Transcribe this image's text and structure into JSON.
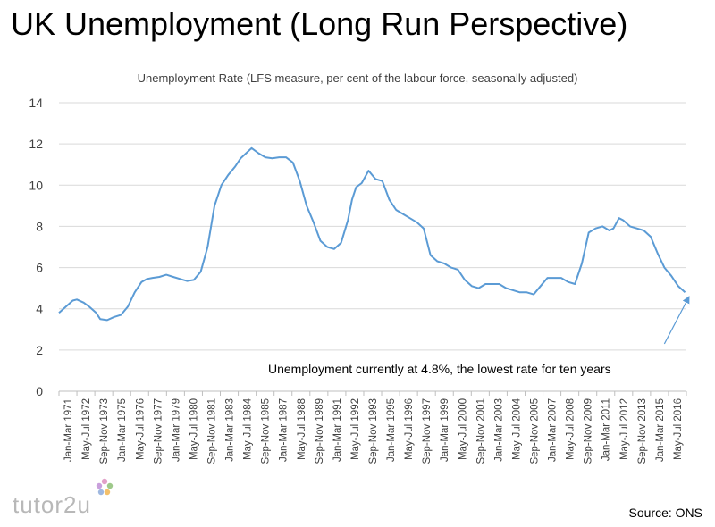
{
  "chart_data": {
    "type": "line",
    "title": "UK Unemployment (Long Run Perspective)",
    "subtitle": "Unemployment Rate (LFS measure, per cent of the labour force, seasonally adjusted)",
    "ylim": [
      0,
      14
    ],
    "yticks": [
      0,
      2,
      4,
      6,
      8,
      10,
      12,
      14
    ],
    "grid": true,
    "x_categories": [
      "Jan-Mar 1971",
      "May-Jul 1972",
      "Sep-Nov 1973",
      "Jan-Mar 1975",
      "May-Jul 1976",
      "Sep-Nov 1977",
      "Jan-Mar 1979",
      "May-Jul 1980",
      "Sep-Nov 1981",
      "Jan-Mar 1983",
      "May-Jul 1984",
      "Sep-Nov 1985",
      "Jan-Mar 1987",
      "May-Jul 1988",
      "Sep-Nov 1989",
      "Jan-Mar 1991",
      "May-Jul 1992",
      "Sep-Nov 1993",
      "Jan-Mar 1995",
      "May-Jul 1996",
      "Sep-Nov 1997",
      "Jan-Mar 1999",
      "May-Jul 2000",
      "Sep-Nov 2001",
      "Jan-Mar 2003",
      "May-Jul 2004",
      "Sep-Nov 2005",
      "Jan-Mar 2007",
      "May-Jul 2008",
      "Sep-Nov 2009",
      "Jan-Mar 2011",
      "May-Jul 2012",
      "Sep-Nov 2013",
      "Jan-Mar 2015",
      "May-Jul 2016"
    ],
    "series": [
      {
        "color": "#5b9bd5",
        "x": [
          1971.0,
          1971.5,
          1972.0,
          1972.3,
          1972.8,
          1973.2,
          1973.7,
          1974.0,
          1974.5,
          1975.0,
          1975.5,
          1976.0,
          1976.5,
          1977.0,
          1977.4,
          1977.8,
          1978.3,
          1978.8,
          1979.3,
          1979.8,
          1980.3,
          1980.8,
          1981.3,
          1981.8,
          1982.3,
          1982.8,
          1983.3,
          1983.8,
          1984.2,
          1984.6,
          1985.0,
          1985.5,
          1986.0,
          1986.5,
          1987.0,
          1987.5,
          1988.0,
          1988.5,
          1989.0,
          1989.5,
          1990.0,
          1990.5,
          1991.0,
          1991.5,
          1992.0,
          1992.3,
          1992.6,
          1993.0,
          1993.5,
          1994.0,
          1994.5,
          1995.0,
          1995.5,
          1996.0,
          1996.5,
          1997.0,
          1997.5,
          1998.0,
          1998.5,
          1999.0,
          1999.5,
          2000.0,
          2000.5,
          2001.0,
          2001.5,
          2002.0,
          2002.5,
          2003.0,
          2003.5,
          2004.0,
          2004.5,
          2005.0,
          2005.5,
          2006.0,
          2006.5,
          2007.0,
          2007.5,
          2008.0,
          2008.5,
          2009.0,
          2009.5,
          2010.0,
          2010.5,
          2011.0,
          2011.3,
          2011.7,
          2012.0,
          2012.5,
          2013.0,
          2013.5,
          2014.0,
          2014.5,
          2015.0,
          2015.5,
          2016.0,
          2016.5
        ],
        "values": [
          3.8,
          4.1,
          4.4,
          4.45,
          4.3,
          4.1,
          3.8,
          3.5,
          3.45,
          3.6,
          3.7,
          4.1,
          4.8,
          5.3,
          5.45,
          5.5,
          5.55,
          5.65,
          5.55,
          5.45,
          5.35,
          5.4,
          5.8,
          7.0,
          9.0,
          10.0,
          10.5,
          10.9,
          11.3,
          11.55,
          11.8,
          11.55,
          11.35,
          11.3,
          11.35,
          11.35,
          11.1,
          10.2,
          9.0,
          8.2,
          7.3,
          7.0,
          6.9,
          7.2,
          8.3,
          9.3,
          9.9,
          10.1,
          10.7,
          10.3,
          10.2,
          9.3,
          8.8,
          8.6,
          8.4,
          8.2,
          7.9,
          6.6,
          6.3,
          6.2,
          6.0,
          5.9,
          5.4,
          5.1,
          5.0,
          5.2,
          5.2,
          5.2,
          5.0,
          4.9,
          4.8,
          4.8,
          4.7,
          5.1,
          5.5,
          5.5,
          5.5,
          5.3,
          5.2,
          6.2,
          7.7,
          7.9,
          8.0,
          7.8,
          7.9,
          8.4,
          8.3,
          8.0,
          7.9,
          7.8,
          7.5,
          6.7,
          6.0,
          5.6,
          5.1,
          4.8
        ]
      }
    ],
    "annotation": {
      "text": "Unemployment currently at 4.8%, the lowest rate for ten years",
      "arrow_from": [
        2015.0,
        2.3
      ],
      "arrow_to": [
        2016.8,
        4.6
      ]
    }
  },
  "brand": "tutor2u",
  "source": "Source: ONS"
}
